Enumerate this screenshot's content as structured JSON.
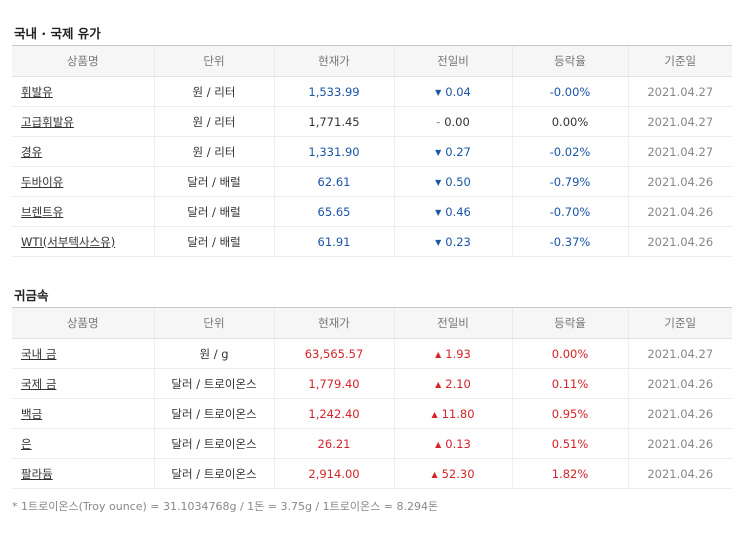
{
  "oil": {
    "title": "국내 · 국제 유가",
    "headers": [
      "상품명",
      "단위",
      "현재가",
      "전일비",
      "등락율",
      "기준일"
    ],
    "rows": [
      {
        "name": "휘발유",
        "unit": "원 / 리터",
        "price": "1,533.99",
        "change": "0.04",
        "dir": "down",
        "rate": "-0.00%",
        "date": "2021.04.27"
      },
      {
        "name": "고급휘발유",
        "unit": "원 / 리터",
        "price": "1,771.45",
        "change": "0.00",
        "dir": "flat",
        "rate": "0.00%",
        "date": "2021.04.27"
      },
      {
        "name": "경유",
        "unit": "원 / 리터",
        "price": "1,331.90",
        "change": "0.27",
        "dir": "down",
        "rate": "-0.02%",
        "date": "2021.04.27"
      },
      {
        "name": "두바이유",
        "unit": "달러 / 배럴",
        "price": "62.61",
        "change": "0.50",
        "dir": "down",
        "rate": "-0.79%",
        "date": "2021.04.26"
      },
      {
        "name": "브렌트유",
        "unit": "달러 / 배럴",
        "price": "65.65",
        "change": "0.46",
        "dir": "down",
        "rate": "-0.70%",
        "date": "2021.04.26"
      },
      {
        "name": "WTI(서부텍사스유)",
        "unit": "달러 / 배럴",
        "price": "61.91",
        "change": "0.23",
        "dir": "down",
        "rate": "-0.37%",
        "date": "2021.04.26"
      }
    ]
  },
  "metal": {
    "title": "귀금속",
    "headers": [
      "상품명",
      "단위",
      "현재가",
      "전일비",
      "등락율",
      "기준일"
    ],
    "rows": [
      {
        "name": "국내 금",
        "unit": "원 / g",
        "price": "63,565.57",
        "change": "1.93",
        "dir": "up",
        "rate": "0.00%",
        "date": "2021.04.27"
      },
      {
        "name": "국제 금",
        "unit": "달러 / 트로이온스",
        "price": "1,779.40",
        "change": "2.10",
        "dir": "up",
        "rate": "0.11%",
        "date": "2021.04.26"
      },
      {
        "name": "백금",
        "unit": "달러 / 트로이온스",
        "price": "1,242.40",
        "change": "11.80",
        "dir": "up",
        "rate": "0.95%",
        "date": "2021.04.26"
      },
      {
        "name": "은",
        "unit": "달러 / 트로이온스",
        "price": "26.21",
        "change": "0.13",
        "dir": "up",
        "rate": "0.51%",
        "date": "2021.04.26"
      },
      {
        "name": "팔라듐",
        "unit": "달러 / 트로이온스",
        "price": "2,914.00",
        "change": "52.30",
        "dir": "up",
        "rate": "1.82%",
        "date": "2021.04.26"
      }
    ]
  },
  "footnote": "* 1트로이온스(Troy ounce) = 31.1034768g / 1돈 = 3.75g / 1트로이온스 = 8.294돈",
  "colors": {
    "down": "#1a55a8",
    "up": "#d4242a",
    "flat": "#333333"
  },
  "icons": {
    "down": "down-triangle-icon",
    "up": "up-triangle-icon",
    "flat": "dash-icon"
  }
}
